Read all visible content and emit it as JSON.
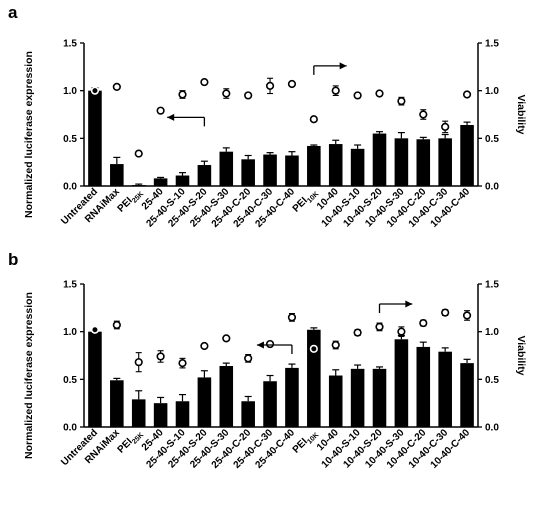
{
  "figure": {
    "panels": [
      {
        "letter": "a",
        "y_ticks": [
          "0.0",
          "0.5",
          "1.0",
          "1.5"
        ],
        "y2_ticks": [
          "0.0",
          "0.5",
          "1.0",
          "1.5"
        ]
      },
      {
        "letter": "b",
        "y_ticks": [
          "0.0",
          "0.5",
          "1.0",
          "1.5"
        ],
        "y2_ticks": [
          "0.0",
          "0.5",
          "1.0",
          "1.5"
        ]
      }
    ]
  },
  "chart_data": [
    {
      "type": "bar",
      "panel": "a",
      "ylabel": "Normalized luciferase expression",
      "y2label": "Viability",
      "ylim": [
        0,
        1.5
      ],
      "y2lim": [
        0,
        1.5
      ],
      "categories": [
        {
          "base": "Untreated",
          "sub": ""
        },
        {
          "base": "RNAiMax",
          "sub": ""
        },
        {
          "base": "PEI",
          "sub": "25K"
        },
        {
          "base": "25-40",
          "sub": ""
        },
        {
          "base": "25-40-S-10",
          "sub": ""
        },
        {
          "base": "25-40-S-20",
          "sub": ""
        },
        {
          "base": "25-40-S-30",
          "sub": ""
        },
        {
          "base": "25-40-C-20",
          "sub": ""
        },
        {
          "base": "25-40-C-30",
          "sub": ""
        },
        {
          "base": "25-40-C-40",
          "sub": ""
        },
        {
          "base": "PEI",
          "sub": "10K"
        },
        {
          "base": "10-40",
          "sub": ""
        },
        {
          "base": "10-40-S-10",
          "sub": ""
        },
        {
          "base": "10-40-S-20",
          "sub": ""
        },
        {
          "base": "10-40-S-30",
          "sub": ""
        },
        {
          "base": "10-40-C-20",
          "sub": ""
        },
        {
          "base": "10-40-C-30",
          "sub": ""
        },
        {
          "base": "10-40-C-40",
          "sub": ""
        }
      ],
      "series": [
        {
          "name": "Normalized luciferase expression",
          "kind": "bar",
          "axis": "left",
          "values": [
            1.0,
            0.23,
            0.01,
            0.08,
            0.11,
            0.22,
            0.36,
            0.28,
            0.33,
            0.32,
            0.42,
            0.44,
            0.39,
            0.55,
            0.5,
            0.49,
            0.5,
            0.64
          ],
          "errors": [
            0.03,
            0.07,
            0.01,
            0.01,
            0.03,
            0.04,
            0.04,
            0.04,
            0.02,
            0.04,
            0.01,
            0.04,
            0.04,
            0.02,
            0.06,
            0.02,
            0.04,
            0.03
          ]
        },
        {
          "name": "Viability",
          "kind": "points",
          "axis": "right",
          "values": [
            1.0,
            1.04,
            0.34,
            0.79,
            0.96,
            1.09,
            0.97,
            0.95,
            1.05,
            1.07,
            0.7,
            1.0,
            0.95,
            0.97,
            0.89,
            0.75,
            0.62,
            0.96
          ],
          "errors": [
            0,
            0,
            0,
            0,
            0.04,
            0,
            0.05,
            0,
            0.08,
            0,
            0,
            0.05,
            0,
            0,
            0.04,
            0.05,
            0.06,
            0
          ]
        }
      ],
      "arrows": [
        {
          "direction": "left",
          "at_index": 5,
          "y_axis": "left",
          "y": 0.72,
          "length_categories": 1.7
        },
        {
          "direction": "right",
          "at_index": 10,
          "y_axis": "right",
          "y": 1.26,
          "length_categories": 1.5
        }
      ]
    },
    {
      "type": "bar",
      "panel": "b",
      "ylabel": "Normalized luciferase expression",
      "y2label": "Viability",
      "ylim": [
        0,
        1.5
      ],
      "y2lim": [
        0,
        1.5
      ],
      "categories": [
        {
          "base": "Untreated",
          "sub": ""
        },
        {
          "base": "RNAiMax",
          "sub": ""
        },
        {
          "base": "PEI",
          "sub": "25K"
        },
        {
          "base": "25-40",
          "sub": ""
        },
        {
          "base": "25-40-S-10",
          "sub": ""
        },
        {
          "base": "25-40-S-20",
          "sub": ""
        },
        {
          "base": "25-40-S-30",
          "sub": ""
        },
        {
          "base": "25-40-C-20",
          "sub": ""
        },
        {
          "base": "25-40-C-30",
          "sub": ""
        },
        {
          "base": "25-40-C-40",
          "sub": ""
        },
        {
          "base": "PEI",
          "sub": "10K"
        },
        {
          "base": "10-40",
          "sub": ""
        },
        {
          "base": "10-40-S-10",
          "sub": ""
        },
        {
          "base": "10-40-S-20",
          "sub": ""
        },
        {
          "base": "10-40-S-30",
          "sub": ""
        },
        {
          "base": "10-40-C-20",
          "sub": ""
        },
        {
          "base": "10-40-C-30",
          "sub": ""
        },
        {
          "base": "10-40-C-40",
          "sub": ""
        }
      ],
      "series": [
        {
          "name": "Normalized luciferase expression",
          "kind": "bar",
          "axis": "left",
          "values": [
            1.0,
            0.49,
            0.29,
            0.25,
            0.27,
            0.52,
            0.64,
            0.27,
            0.48,
            0.62,
            1.02,
            0.54,
            0.61,
            0.61,
            0.92,
            0.84,
            0.79,
            0.67
          ],
          "errors": [
            0.03,
            0.02,
            0.09,
            0.06,
            0.07,
            0.07,
            0.03,
            0.05,
            0.06,
            0.04,
            0.02,
            0.06,
            0.04,
            0.02,
            0.04,
            0.05,
            0.04,
            0.04
          ]
        },
        {
          "name": "Viability",
          "kind": "points",
          "axis": "right",
          "values": [
            1.02,
            1.07,
            0.68,
            0.74,
            0.67,
            0.85,
            0.93,
            0.72,
            0.87,
            1.15,
            0.82,
            0.86,
            0.99,
            1.05,
            1.0,
            1.09,
            1.2,
            1.17
          ],
          "errors": [
            0,
            0.04,
            0.1,
            0.06,
            0.05,
            0,
            0,
            0.04,
            0,
            0.04,
            0,
            0.04,
            0.03,
            0.04,
            0.05,
            0.03,
            0.03,
            0.05
          ]
        }
      ],
      "arrows": [
        {
          "direction": "left",
          "at_index": 9,
          "y_axis": "left",
          "y": 0.86,
          "length_categories": 1.6
        },
        {
          "direction": "right",
          "at_index": 13,
          "y_axis": "right",
          "y": 1.29,
          "length_categories": 1.5
        }
      ]
    }
  ]
}
